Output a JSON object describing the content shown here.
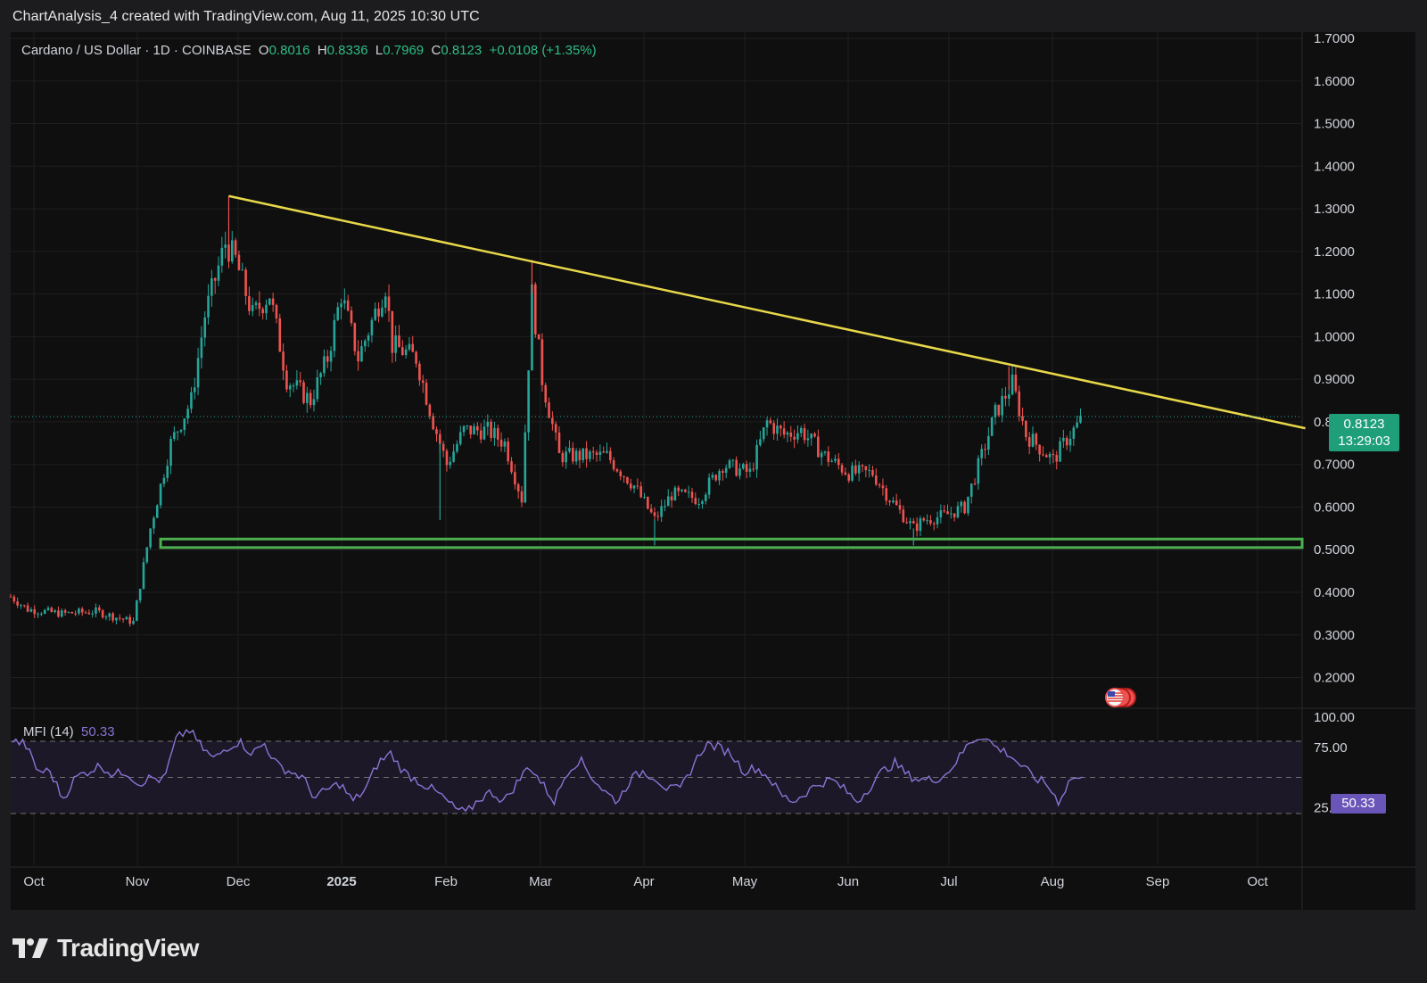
{
  "caption": "ChartAnalysis_4 created with TradingView.com, Aug 11, 2025 10:30 UTC",
  "legend": {
    "symbol": "Cardano / US Dollar · 1D · COINBASE",
    "o_label": "O",
    "o_val": "0.8016",
    "h_label": "H",
    "h_val": "0.8336",
    "l_label": "L",
    "l_val": "0.7969",
    "c_label": "C",
    "c_val": "0.8123",
    "change": "+0.0108 (+1.35%)"
  },
  "price_tag": {
    "price": "0.8123",
    "countdown": "13:29:03"
  },
  "mfi": {
    "label": "MFI (14)",
    "value": "50.33"
  },
  "logo_text": "TradingView",
  "colors": {
    "up": "#26a69a",
    "down": "#ef5350",
    "trendline": "#e8d84a",
    "support": "#4caf50",
    "mfi": "#8a74d6"
  },
  "chart_data": {
    "type": "candlestick",
    "title": "Cardano / US Dollar · 1D · COINBASE",
    "price_axis": {
      "ylim": [
        0.15,
        1.72
      ],
      "ticks": [
        "1.7000",
        "1.6000",
        "1.5000",
        "1.4000",
        "1.3000",
        "1.2000",
        "1.1000",
        "1.0000",
        "0.9000",
        "0.8000",
        "0.7000",
        "0.6000",
        "0.5000",
        "0.4000",
        "0.3000",
        "0.2000"
      ]
    },
    "time_axis": [
      "Oct",
      "Nov",
      "Dec",
      "2025",
      "Feb",
      "Mar",
      "Apr",
      "May",
      "Jun",
      "Jul",
      "Aug",
      "Sep",
      "Oct"
    ],
    "close_path": [
      [
        "2024-09-30",
        0.39
      ],
      [
        "2024-10-05",
        0.36
      ],
      [
        "2024-10-15",
        0.35
      ],
      [
        "2024-10-25",
        0.355
      ],
      [
        "2024-11-05",
        0.33
      ],
      [
        "2024-11-10",
        0.55
      ],
      [
        "2024-11-16",
        0.75
      ],
      [
        "2024-11-22",
        0.85
      ],
      [
        "2024-11-26",
        1.05
      ],
      [
        "2024-12-02",
        1.22
      ],
      [
        "2024-12-05",
        1.18
      ],
      [
        "2024-12-10",
        1.05
      ],
      [
        "2024-12-15",
        1.1
      ],
      [
        "2024-12-20",
        0.9
      ],
      [
        "2024-12-27",
        0.85
      ],
      [
        "2025-01-01",
        0.95
      ],
      [
        "2025-01-05",
        1.1
      ],
      [
        "2025-01-10",
        0.95
      ],
      [
        "2025-01-18",
        1.12
      ],
      [
        "2025-01-20",
        0.98
      ],
      [
        "2025-01-27",
        0.95
      ],
      [
        "2025-02-01",
        0.8
      ],
      [
        "2025-02-05",
        0.7
      ],
      [
        "2025-02-10",
        0.78
      ],
      [
        "2025-02-17",
        0.78
      ],
      [
        "2025-02-22",
        0.75
      ],
      [
        "2025-02-27",
        0.62
      ],
      [
        "2025-03-02",
        1.1
      ],
      [
        "2025-03-05",
        0.9
      ],
      [
        "2025-03-10",
        0.72
      ],
      [
        "2025-03-17",
        0.72
      ],
      [
        "2025-03-24",
        0.72
      ],
      [
        "2025-04-01",
        0.65
      ],
      [
        "2025-04-07",
        0.57
      ],
      [
        "2025-04-12",
        0.63
      ],
      [
        "2025-04-20",
        0.62
      ],
      [
        "2025-04-27",
        0.7
      ],
      [
        "2025-05-05",
        0.68
      ],
      [
        "2025-05-10",
        0.8
      ],
      [
        "2025-05-15",
        0.77
      ],
      [
        "2025-05-20",
        0.78
      ],
      [
        "2025-05-27",
        0.72
      ],
      [
        "2025-06-03",
        0.68
      ],
      [
        "2025-06-10",
        0.68
      ],
      [
        "2025-06-15",
        0.62
      ],
      [
        "2025-06-22",
        0.55
      ],
      [
        "2025-06-25",
        0.57
      ],
      [
        "2025-07-01",
        0.58
      ],
      [
        "2025-07-07",
        0.6
      ],
      [
        "2025-07-12",
        0.72
      ],
      [
        "2025-07-16",
        0.82
      ],
      [
        "2025-07-21",
        0.89
      ],
      [
        "2025-07-25",
        0.77
      ],
      [
        "2025-08-02",
        0.71
      ],
      [
        "2025-08-06",
        0.76
      ],
      [
        "2025-08-11",
        0.8123
      ]
    ],
    "spikes": [
      {
        "date": "2024-12-03",
        "high": 1.33
      },
      {
        "date": "2025-03-02",
        "high": 1.18
      },
      {
        "date": "2025-07-20",
        "high": 0.93
      },
      {
        "date": "2025-02-03",
        "low": 0.57
      },
      {
        "date": "2025-04-07",
        "low": 0.51
      },
      {
        "date": "2025-06-22",
        "low": 0.51
      }
    ],
    "trendline": {
      "from": [
        "2024-12-03",
        1.33
      ],
      "to": [
        "2025-10-15",
        0.785
      ]
    },
    "support_zone": {
      "low": 0.505,
      "high": 0.525,
      "from": "2024-11-13"
    },
    "last_price": 0.8123,
    "mfi_series": {
      "name": "MFI (14)",
      "ylim": [
        0,
        100
      ],
      "ticks": [
        "100.00",
        "75.00",
        "25.00"
      ],
      "levels": [
        80,
        50,
        20
      ],
      "last": 50.33,
      "values": [
        80,
        78,
        55,
        55,
        32,
        50,
        55,
        60,
        52,
        55,
        45,
        50,
        47,
        82,
        90,
        75,
        65,
        75,
        80,
        70,
        78,
        60,
        55,
        50,
        33,
        40,
        45,
        30,
        40,
        62,
        70,
        55,
        48,
        42,
        35,
        25,
        20,
        32,
        38,
        30,
        45,
        60,
        45,
        30,
        55,
        65,
        50,
        38,
        30,
        48,
        55,
        50,
        40,
        40,
        60,
        78,
        75,
        70,
        55,
        58,
        50,
        35,
        30,
        38,
        45,
        48,
        40,
        30,
        42,
        55,
        62,
        52,
        48,
        48,
        52,
        65,
        80,
        85,
        75,
        70,
        60,
        50,
        45,
        30,
        50,
        48
      ]
    }
  }
}
